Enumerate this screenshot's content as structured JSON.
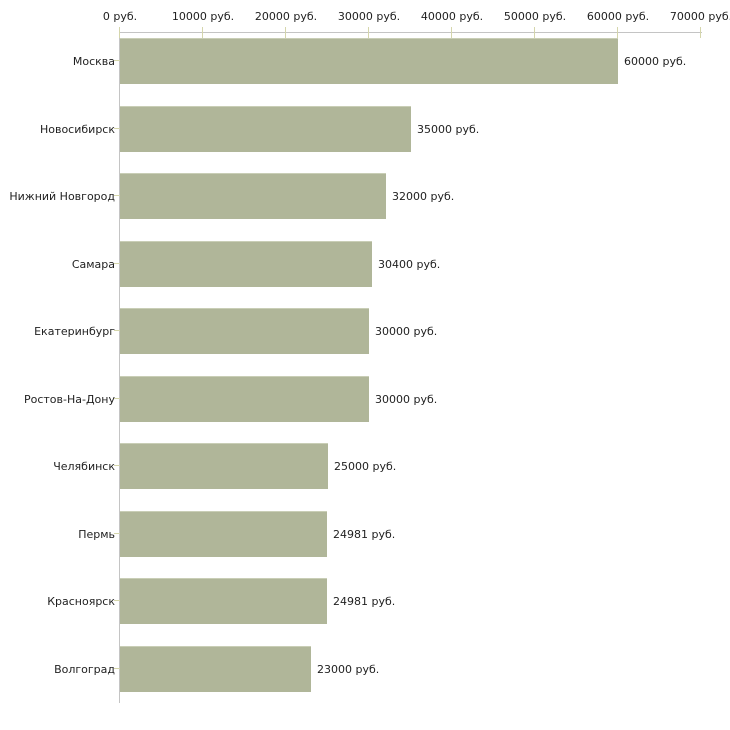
{
  "chart_data": {
    "type": "bar",
    "orientation": "horizontal",
    "title": "",
    "categories": [
      "Москва",
      "Новосибирск",
      "Нижний Новгород",
      "Самара",
      "Екатеринбург",
      "Ростов-На-Дону",
      "Челябинск",
      "Пермь",
      "Красноярск",
      "Волгоград"
    ],
    "values": [
      60000,
      35000,
      32000,
      30400,
      30000,
      30000,
      25000,
      24981,
      24981,
      23000
    ],
    "bar_labels": [
      "60000 руб.",
      "35000 руб.",
      "32000 руб.",
      "30400 руб.",
      "30000 руб.",
      "30000 руб.",
      "25000 руб.",
      "24981 руб.",
      "24981 руб.",
      "23000 руб."
    ],
    "x_axis": {
      "position": "top",
      "tick_values": [
        0,
        10000,
        20000,
        30000,
        40000,
        50000,
        60000,
        70000
      ],
      "tick_labels": [
        "0 руб.",
        "10000 руб.",
        "20000 руб.",
        "30000 руб.",
        "40000 руб.",
        "50000 руб.",
        "60000 руб.",
        "70000 руб."
      ],
      "xlim": [
        0,
        70000
      ]
    },
    "ylabel": "",
    "xlabel": "",
    "grid": false,
    "legend": false,
    "colors": {
      "bar": "#b0b699",
      "bar_edge": "#c9ceb6",
      "axis_line": "#c4c4c4",
      "tick_mark": "#d5d6ac",
      "text": "#1f1f1f",
      "background": "#ffffff"
    }
  }
}
